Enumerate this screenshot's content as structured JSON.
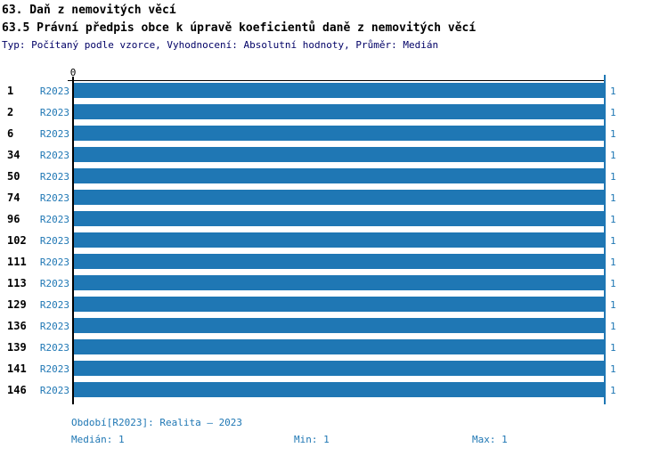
{
  "page": {
    "title_line1": "63. Daň z nemovitých věcí",
    "title_line2": "63.5 Právní předpis obce k úpravě koeficientů daně z nemovitých věcí",
    "subtitle": "Typ: Počítaný podle vzorce, Vyhodnocení: Absolutní hodnoty, Průměr: Medián"
  },
  "colors": {
    "bar": "#1f77b4",
    "blue_text": "#1f77b4",
    "subtitle_text": "#000066",
    "axis": "#000000",
    "background": "#ffffff"
  },
  "chart_data": {
    "type": "bar",
    "orientation": "horizontal",
    "title": "63.5 Právní předpis obce k úpravě koeficientů daně z nemovitých věcí",
    "categories": [
      "1",
      "2",
      "6",
      "34",
      "50",
      "74",
      "96",
      "102",
      "111",
      "113",
      "129",
      "136",
      "139",
      "141",
      "146"
    ],
    "series": [
      {
        "name": "R2023",
        "values": [
          1,
          1,
          1,
          1,
          1,
          1,
          1,
          1,
          1,
          1,
          1,
          1,
          1,
          1,
          1
        ]
      }
    ],
    "xlim": [
      0,
      1
    ],
    "x_ticks": [
      "0"
    ],
    "grid": false,
    "legend_position": "none",
    "median_line_value": 1,
    "bar_value_label": "1"
  },
  "footer": {
    "period": "Období[R2023]: Realita – 2023",
    "median": "Medián: 1",
    "min": "Min: 1",
    "max": "Max: 1"
  }
}
